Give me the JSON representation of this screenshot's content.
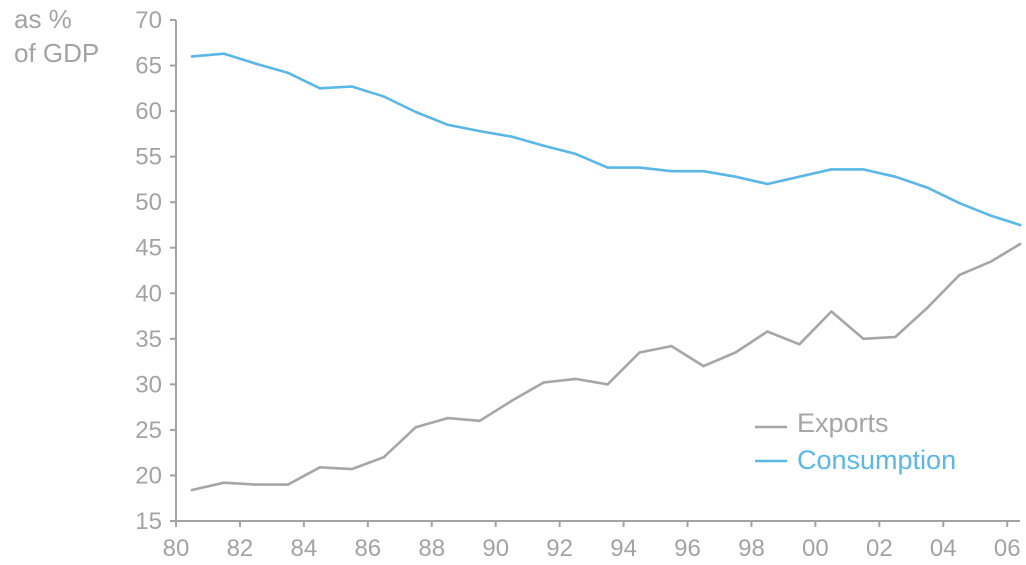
{
  "chart_data": {
    "type": "line",
    "title": "",
    "xlabel": "",
    "ylabel": [
      "as %",
      "of GDP"
    ],
    "ylim": [
      15,
      70
    ],
    "xlim": [
      1980,
      2006.4
    ],
    "y_ticks": [
      15,
      20,
      25,
      30,
      35,
      40,
      45,
      50,
      55,
      60,
      65,
      70
    ],
    "x_ticks": [
      {
        "x": 1980,
        "label": "80"
      },
      {
        "x": 1982,
        "label": "82"
      },
      {
        "x": 1984,
        "label": "84"
      },
      {
        "x": 1986,
        "label": "86"
      },
      {
        "x": 1988,
        "label": "88"
      },
      {
        "x": 1990,
        "label": "90"
      },
      {
        "x": 1992,
        "label": "92"
      },
      {
        "x": 1994,
        "label": "94"
      },
      {
        "x": 1996,
        "label": "96"
      },
      {
        "x": 1998,
        "label": "98"
      },
      {
        "x": 2000,
        "label": "00"
      },
      {
        "x": 2002,
        "label": "02"
      },
      {
        "x": 2004,
        "label": "04"
      },
      {
        "x": 2006,
        "label": "06"
      }
    ],
    "grid": false,
    "legend_position": "bottom-right",
    "series": [
      {
        "name": "Exports",
        "color": "#a6a6a6",
        "x": [
          1980.5,
          1981.5,
          1982.5,
          1983.5,
          1984.5,
          1985.5,
          1986.5,
          1987.5,
          1988.5,
          1989.5,
          1990.5,
          1991.5,
          1992.5,
          1993.5,
          1994.5,
          1995.5,
          1996.5,
          1997.5,
          1998.5,
          1999.5,
          2000.5,
          2001.5,
          2002.5,
          2003.5,
          2004.5,
          2005.5,
          2006.4
        ],
        "y": [
          18.4,
          19.2,
          19.0,
          19.0,
          20.9,
          20.7,
          22.0,
          25.3,
          26.3,
          26.0,
          28.2,
          30.2,
          30.6,
          30.0,
          33.5,
          34.2,
          32.0,
          33.5,
          35.8,
          34.4,
          38.0,
          35.0,
          35.2,
          38.4,
          42.0,
          43.5,
          45.4
        ]
      },
      {
        "name": "Consumption",
        "color": "#5bb7e6",
        "x": [
          1980.5,
          1981.5,
          1982.5,
          1983.5,
          1984.5,
          1985.5,
          1986.5,
          1987.5,
          1988.5,
          1989.5,
          1990.5,
          1991.5,
          1992.5,
          1993.5,
          1994.5,
          1995.5,
          1996.5,
          1997.5,
          1998.5,
          1999.5,
          2000.5,
          2001.5,
          2002.5,
          2003.5,
          2004.5,
          2005.5,
          2006.4
        ],
        "y": [
          66.0,
          66.3,
          65.2,
          64.2,
          62.5,
          62.7,
          61.6,
          59.9,
          58.5,
          57.8,
          57.2,
          56.2,
          55.3,
          53.8,
          53.8,
          53.4,
          53.4,
          52.8,
          52.0,
          52.8,
          53.6,
          53.6,
          52.8,
          51.6,
          49.9,
          48.5,
          47.5
        ]
      }
    ]
  }
}
